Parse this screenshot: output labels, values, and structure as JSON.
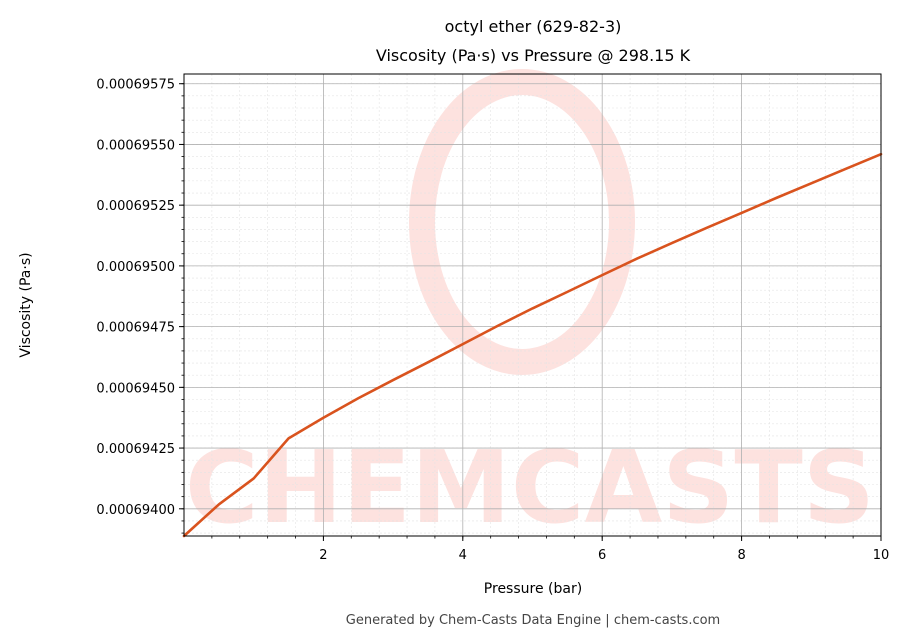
{
  "chart_data": {
    "type": "line",
    "title": "octyl ether (629-82-3)",
    "subtitle": "Viscosity (Pa·s) vs Pressure @ 298.15 K",
    "xlabel": "Pressure (bar)",
    "ylabel": "Viscosity (Pa·s)",
    "xlim": [
      0.0,
      10.0
    ],
    "ylim": [
      0.000693888,
      0.00069579
    ],
    "x_ticks": [
      2,
      4,
      6,
      8,
      10
    ],
    "x_tick_labels": [
      "2",
      "4",
      "6",
      "8",
      "10"
    ],
    "y_ticks": [
      0.000694,
      0.00069425,
      0.0006945,
      0.00069475,
      0.000695,
      0.00069525,
      0.0006955,
      0.00069575
    ],
    "y_tick_labels": [
      "0.00069400",
      "0.00069425",
      "0.00069450",
      "0.00069475",
      "0.00069500",
      "0.00069525",
      "0.00069550",
      "0.00069575"
    ],
    "grid": true,
    "color": "#d9531e",
    "series": [
      {
        "x": [
          0.0,
          0.5,
          1.0,
          1.5,
          2.0,
          2.5,
          3.0,
          3.5,
          4.0,
          4.5,
          5.0,
          5.5,
          6.0,
          6.5,
          7.0,
          7.5,
          8.0,
          8.5,
          9.0,
          9.5,
          10.0
        ],
        "values": [
          0.000693888,
          0.000694018,
          0.000694125,
          0.00069429,
          0.000694375,
          0.000694455,
          0.00069453,
          0.000694603,
          0.000694678,
          0.000694753,
          0.000694825,
          0.000694893,
          0.000694962,
          0.00069503,
          0.000695094,
          0.000695157,
          0.000695218,
          0.00069528,
          0.00069534,
          0.0006954,
          0.00069546
        ]
      }
    ]
  },
  "watermark": "CHEMCASTS",
  "footer": "Generated by Chem-Casts Data Engine | chem-casts.com"
}
